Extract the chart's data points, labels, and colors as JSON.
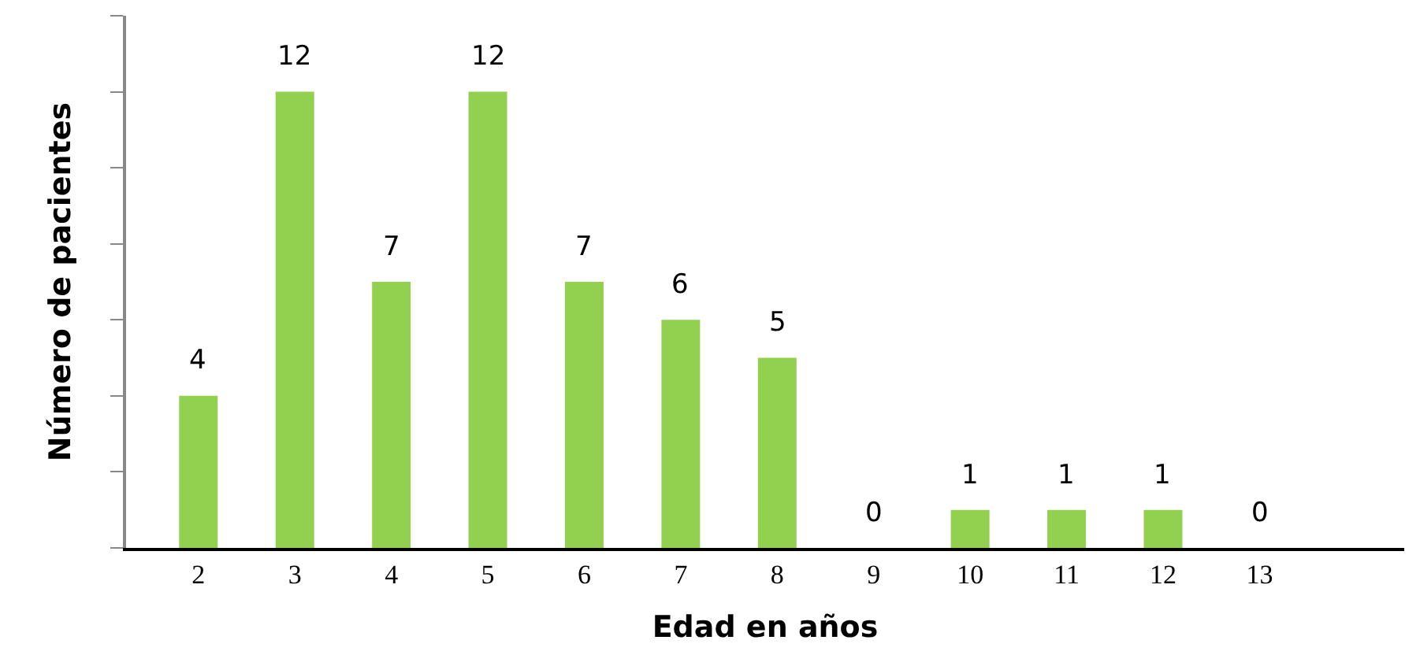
{
  "chart_data": {
    "type": "bar",
    "xlabel": "Edad en años",
    "ylabel": "Número de pacientes",
    "categories": [
      "2",
      "3",
      "4",
      "5",
      "6",
      "7",
      "8",
      "9",
      "10",
      "11",
      "12",
      "13",
      null
    ],
    "values": [
      4,
      12,
      7,
      12,
      7,
      6,
      5,
      0,
      1,
      1,
      1,
      0,
      null
    ],
    "color": "#92d050",
    "data_labels": true,
    "tick_labels": "x",
    "ylim": [
      0,
      14
    ],
    "yticks": [
      {
        "value": 0,
        "label": null
      },
      {
        "value": 2,
        "label": null
      },
      {
        "value": 4,
        "label": null
      },
      {
        "value": 6,
        "label": null
      },
      {
        "value": 8,
        "label": null
      },
      {
        "value": 10,
        "label": null
      },
      {
        "value": 12,
        "label": null
      },
      {
        "value": 14,
        "label": null
      }
    ]
  }
}
